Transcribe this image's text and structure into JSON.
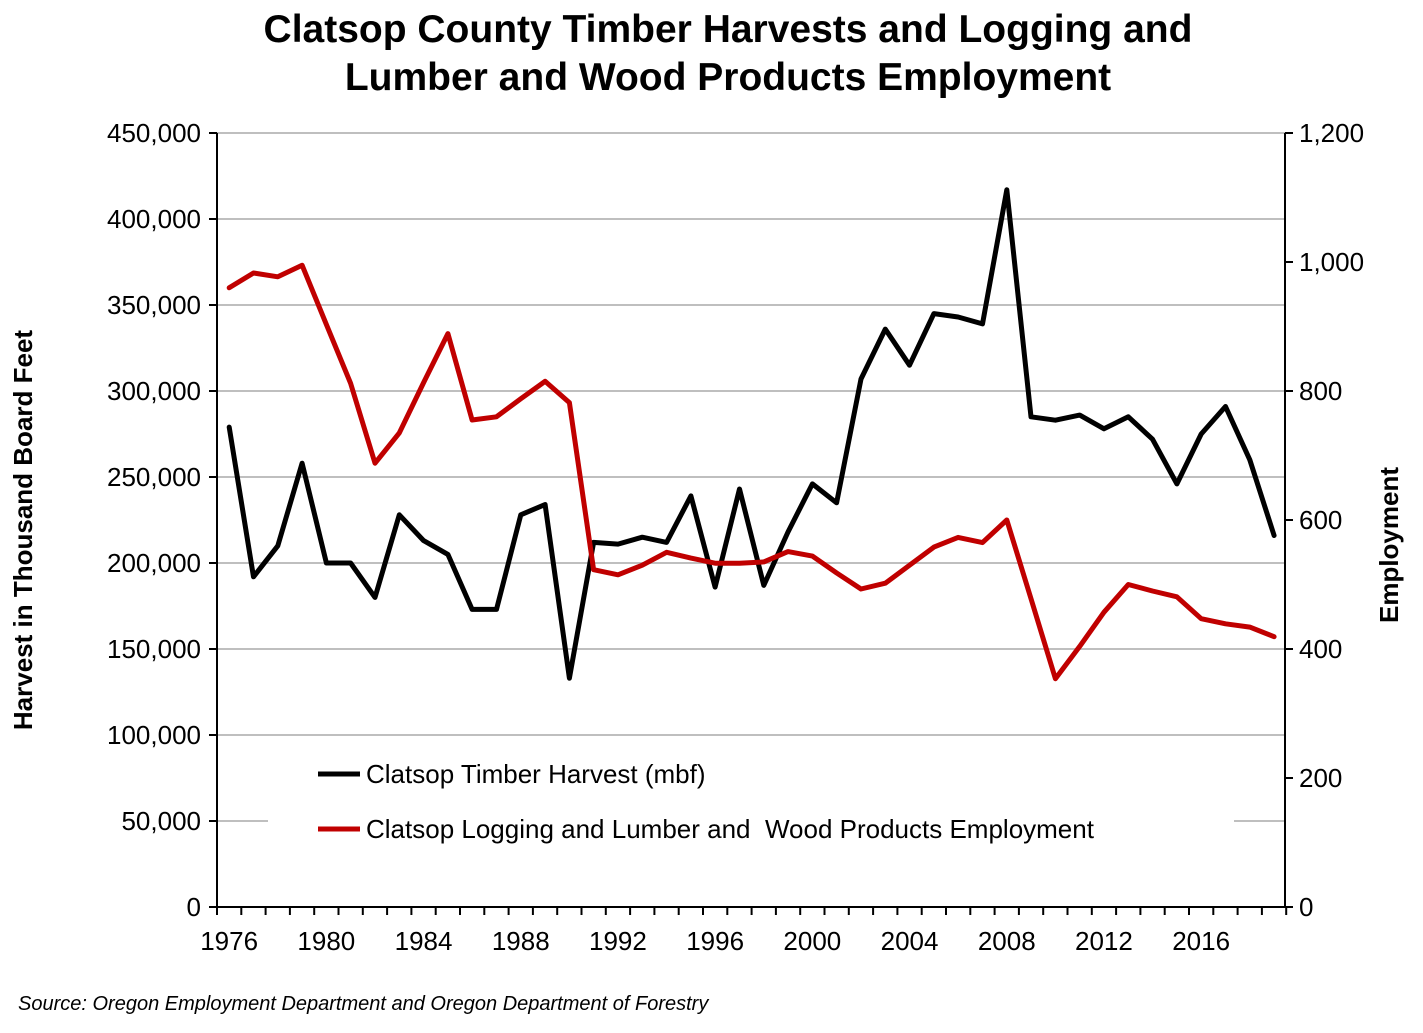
{
  "chart_data": {
    "type": "line",
    "title": [
      "Clatsop County Timber Harvests and Logging and",
      "Lumber and Wood Products Employment"
    ],
    "y_left_label": "Harvest in Thousand Board Feet",
    "y_right_label": "Employment",
    "x_range": [
      1976,
      2019
    ],
    "x_ticks": [
      1976,
      1980,
      1984,
      1988,
      1992,
      1996,
      2000,
      2004,
      2008,
      2012,
      2016
    ],
    "x_tick_labels": [
      "1976",
      "1980",
      "1984",
      "1988",
      "1992",
      "1996",
      "2000",
      "2004",
      "2008",
      "2012",
      "2016"
    ],
    "y_left_range": [
      0,
      450000
    ],
    "y_left_ticks": [
      0,
      50000,
      100000,
      150000,
      200000,
      250000,
      300000,
      350000,
      400000,
      450000
    ],
    "y_left_tick_labels": [
      "0",
      "50,000",
      "100,000",
      "150,000",
      "200,000",
      "250,000",
      "300,000",
      "350,000",
      "400,000",
      "450,000"
    ],
    "y_right_range": [
      0,
      1200
    ],
    "y_right_ticks": [
      0,
      200,
      400,
      600,
      800,
      1000,
      1200
    ],
    "y_right_tick_labels": [
      "0",
      "200",
      "400",
      "600",
      "800",
      "1,000",
      "1,200"
    ],
    "gridlines": true,
    "legend_position": "lower-center",
    "series": [
      {
        "name": "Clatsop Timber Harvest (mbf)",
        "axis": "left",
        "color": "#000000",
        "x": [
          1976,
          1977,
          1978,
          1979,
          1980,
          1981,
          1982,
          1983,
          1984,
          1985,
          1986,
          1987,
          1988,
          1989,
          1990,
          1991,
          1992,
          1993,
          1994,
          1995,
          1996,
          1997,
          1998,
          1999,
          2000,
          2001,
          2002,
          2003,
          2004,
          2005,
          2006,
          2007,
          2008,
          2009,
          2010,
          2011,
          2012,
          2013,
          2014,
          2015,
          2016,
          2017,
          2018,
          2019
        ],
        "values": [
          279000,
          192000,
          210000,
          258000,
          200000,
          200000,
          180000,
          228000,
          213000,
          205000,
          173000,
          173000,
          228000,
          234000,
          133000,
          212000,
          211000,
          215000,
          212000,
          239000,
          186000,
          243000,
          187000,
          218000,
          246000,
          235000,
          307000,
          336000,
          315000,
          345000,
          343000,
          339000,
          417000,
          285000,
          283000,
          286000,
          278000,
          285000,
          272000,
          246000,
          275000,
          291000,
          260000,
          216000
        ]
      },
      {
        "name": "Clatsop Logging and Lumber and  Wood Products Employment",
        "axis": "right",
        "color": "#c00000",
        "x": [
          1976,
          1977,
          1978,
          1979,
          1980,
          1981,
          1982,
          1983,
          1984,
          1985,
          1986,
          1987,
          1988,
          1989,
          1990,
          1991,
          1992,
          1993,
          1994,
          1995,
          1996,
          1997,
          1998,
          1999,
          2000,
          2001,
          2002,
          2003,
          2004,
          2005,
          2006,
          2007,
          2008,
          2009,
          2010,
          2011,
          2012,
          2013,
          2014,
          2015,
          2016,
          2017,
          2018,
          2019
        ],
        "values": [
          960,
          983,
          977,
          995,
          903,
          812,
          688,
          735,
          813,
          889,
          755,
          760,
          788,
          815,
          782,
          523,
          515,
          530,
          550,
          541,
          533,
          533,
          535,
          551,
          544,
          518,
          493,
          502,
          530,
          558,
          573,
          565,
          600,
          478,
          354,
          404,
          457,
          500,
          490,
          481,
          447,
          439,
          434,
          419
        ]
      }
    ]
  },
  "source": "Source: Oregon Employment Department and Oregon Department of Forestry"
}
